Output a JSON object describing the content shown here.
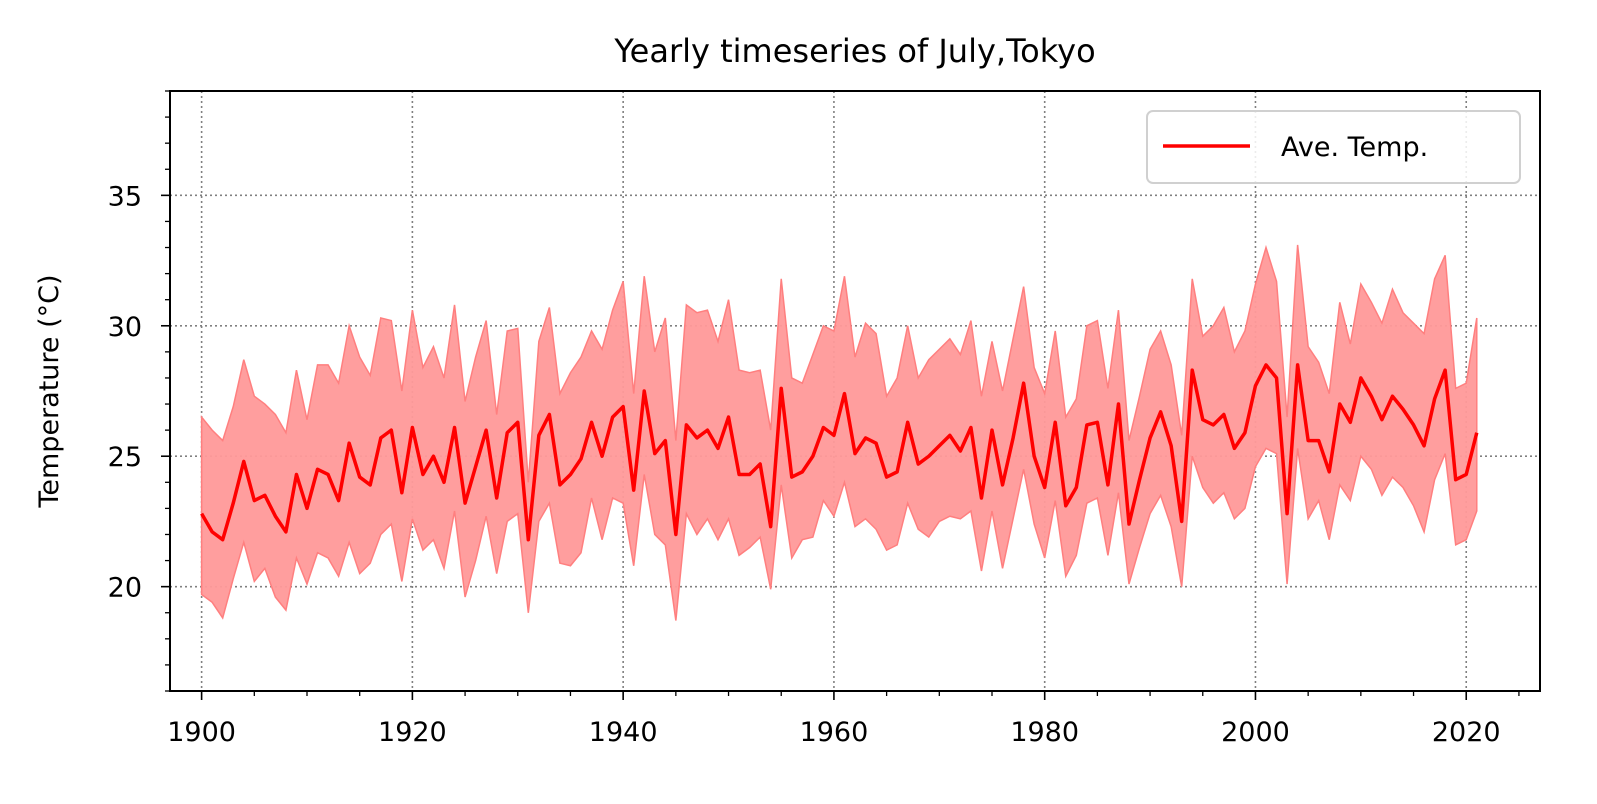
{
  "chart_data": {
    "type": "line",
    "title": "Yearly timeseries of July,Tokyo",
    "xlabel": "",
    "ylabel": "Temperature (°C)",
    "xlim": [
      1897,
      2027
    ],
    "ylim": [
      16,
      39
    ],
    "xticks": [
      1900,
      1920,
      1940,
      1960,
      1980,
      2000,
      2020
    ],
    "yticks": [
      20,
      25,
      30,
      35
    ],
    "grid": true,
    "legend_position": "upper right",
    "colors": {
      "line": "#ff0000",
      "band": "#ff9999",
      "band_edge": "#ff7f7f",
      "grid": "#808080"
    },
    "x": [
      1900,
      1901,
      1902,
      1903,
      1904,
      1905,
      1906,
      1907,
      1908,
      1909,
      1910,
      1911,
      1912,
      1913,
      1914,
      1915,
      1916,
      1917,
      1918,
      1919,
      1920,
      1921,
      1922,
      1923,
      1924,
      1925,
      1926,
      1927,
      1928,
      1929,
      1930,
      1931,
      1932,
      1933,
      1934,
      1935,
      1936,
      1937,
      1938,
      1939,
      1940,
      1941,
      1942,
      1943,
      1944,
      1945,
      1946,
      1947,
      1948,
      1949,
      1950,
      1951,
      1952,
      1953,
      1954,
      1955,
      1956,
      1957,
      1958,
      1959,
      1960,
      1961,
      1962,
      1963,
      1964,
      1965,
      1966,
      1967,
      1968,
      1969,
      1970,
      1971,
      1972,
      1973,
      1974,
      1975,
      1976,
      1977,
      1978,
      1979,
      1980,
      1981,
      1982,
      1983,
      1984,
      1985,
      1986,
      1987,
      1988,
      1989,
      1990,
      1991,
      1992,
      1993,
      1994,
      1995,
      1996,
      1997,
      1998,
      1999,
      2000,
      2001,
      2002,
      2003,
      2004,
      2005,
      2006,
      2007,
      2008,
      2009,
      2010,
      2011,
      2012,
      2013,
      2014,
      2015,
      2016,
      2017,
      2018,
      2019,
      2020,
      2021
    ],
    "series": [
      {
        "name": "Ave. Temp.",
        "values": [
          22.8,
          22.1,
          21.8,
          23.2,
          24.8,
          23.3,
          23.5,
          22.7,
          22.1,
          24.3,
          23.0,
          24.5,
          24.3,
          23.3,
          25.5,
          24.2,
          23.9,
          25.7,
          26.0,
          23.6,
          26.1,
          24.3,
          25.0,
          24.0,
          26.1,
          23.2,
          24.6,
          26.0,
          23.4,
          25.9,
          26.3,
          21.8,
          25.8,
          26.6,
          23.9,
          24.3,
          24.9,
          26.3,
          25.0,
          26.5,
          26.9,
          23.7,
          27.5,
          25.1,
          25.6,
          22.0,
          26.2,
          25.7,
          26.0,
          25.3,
          26.5,
          24.3,
          24.3,
          24.7,
          22.3,
          27.6,
          24.2,
          24.4,
          25.0,
          26.1,
          25.8,
          27.4,
          25.1,
          25.7,
          25.5,
          24.2,
          24.4,
          26.3,
          24.7,
          25.0,
          25.4,
          25.8,
          25.2,
          26.1,
          23.4,
          26.0,
          23.9,
          25.7,
          27.8,
          25.0,
          23.8,
          26.3,
          23.1,
          23.8,
          26.2,
          26.3,
          23.9,
          27.0,
          22.4,
          24.1,
          25.7,
          26.7,
          25.4,
          22.5,
          28.3,
          26.4,
          26.2,
          26.6,
          25.3,
          25.9,
          27.7,
          28.5,
          28.0,
          22.8,
          28.5,
          25.6,
          25.6,
          24.4,
          27.0,
          26.3,
          28.0,
          27.3,
          26.4,
          27.3,
          26.8,
          26.2,
          25.4,
          27.2,
          28.3,
          24.1,
          24.3,
          25.9
        ]
      }
    ],
    "band": {
      "upper": [
        26.5,
        26.0,
        25.6,
        26.9,
        28.7,
        27.3,
        27.0,
        26.6,
        25.9,
        28.3,
        26.4,
        28.5,
        28.5,
        27.8,
        30.0,
        28.8,
        28.1,
        30.3,
        30.2,
        27.5,
        30.6,
        28.4,
        29.2,
        28.0,
        30.8,
        27.1,
        28.8,
        30.2,
        26.6,
        29.8,
        29.9,
        24.0,
        29.4,
        30.7,
        27.4,
        28.2,
        28.8,
        29.8,
        29.1,
        30.6,
        31.7,
        27.4,
        31.9,
        29.0,
        30.3,
        25.6,
        30.8,
        30.5,
        30.6,
        29.4,
        31.0,
        28.3,
        28.2,
        28.3,
        26.0,
        31.8,
        28.0,
        27.8,
        28.9,
        30.0,
        29.8,
        31.9,
        28.8,
        30.1,
        29.7,
        27.3,
        28.0,
        30.0,
        28.0,
        28.7,
        29.1,
        29.5,
        28.9,
        30.2,
        27.3,
        29.4,
        27.5,
        29.5,
        31.5,
        28.4,
        27.4,
        29.8,
        26.5,
        27.2,
        30.0,
        30.2,
        27.6,
        30.6,
        25.6,
        27.3,
        29.1,
        29.8,
        28.5,
        25.8,
        31.8,
        29.6,
        30.0,
        30.7,
        29.0,
        29.8,
        31.6,
        33.0,
        31.7,
        26.5,
        33.1,
        29.2,
        28.6,
        27.4,
        30.9,
        29.3,
        31.6,
        30.9,
        30.1,
        31.4,
        30.5,
        30.1,
        29.7,
        31.8,
        32.7,
        27.6,
        27.8,
        30.3
      ],
      "lower": [
        19.7,
        19.4,
        18.8,
        20.3,
        21.7,
        20.2,
        20.7,
        19.6,
        19.1,
        21.1,
        20.1,
        21.3,
        21.1,
        20.4,
        21.7,
        20.5,
        20.9,
        22.0,
        22.4,
        20.2,
        22.6,
        21.4,
        21.8,
        20.7,
        22.9,
        19.6,
        21.0,
        22.7,
        20.5,
        22.5,
        22.8,
        19.0,
        22.5,
        23.2,
        20.9,
        20.8,
        21.3,
        23.4,
        21.8,
        23.4,
        23.2,
        20.8,
        24.3,
        22.0,
        21.6,
        18.7,
        22.8,
        22.0,
        22.6,
        21.8,
        22.6,
        21.2,
        21.5,
        21.9,
        19.9,
        23.9,
        21.1,
        21.8,
        21.9,
        23.3,
        22.7,
        24.0,
        22.3,
        22.6,
        22.2,
        21.4,
        21.6,
        23.2,
        22.2,
        21.9,
        22.5,
        22.7,
        22.6,
        22.9,
        20.6,
        22.9,
        20.7,
        22.6,
        24.5,
        22.4,
        21.1,
        23.3,
        20.4,
        21.2,
        23.2,
        23.4,
        21.2,
        23.6,
        20.1,
        21.5,
        22.8,
        23.5,
        22.3,
        20.0,
        25.0,
        23.8,
        23.2,
        23.6,
        22.6,
        23.0,
        24.6,
        25.3,
        25.1,
        20.1,
        25.3,
        22.6,
        23.3,
        21.8,
        23.9,
        23.3,
        25.0,
        24.5,
        23.5,
        24.2,
        23.8,
        23.1,
        22.1,
        24.1,
        25.1,
        21.6,
        21.8,
        22.9
      ]
    }
  }
}
